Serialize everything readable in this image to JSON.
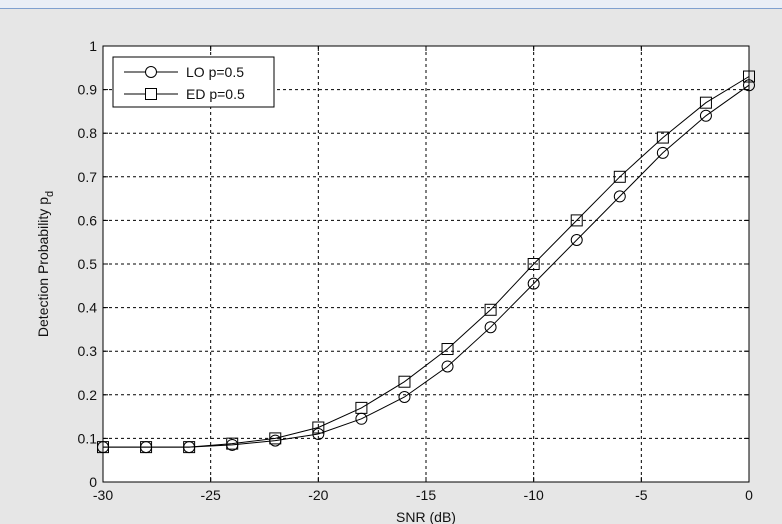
{
  "chart_data": {
    "type": "line",
    "title": "",
    "xlabel": "SNR (dB)",
    "ylabel_main": "Detection Probability p",
    "ylabel_sub": "d",
    "xlim": [
      -30,
      0
    ],
    "ylim": [
      0,
      1
    ],
    "xticks": [
      -30,
      -25,
      -20,
      -15,
      -10,
      -5,
      0
    ],
    "yticks": [
      0,
      0.1,
      0.2,
      0.3,
      0.4,
      0.5,
      0.6,
      0.7,
      0.8,
      0.9,
      1
    ],
    "ytick_labels": [
      "0",
      "0.1",
      "0.2",
      "0.3",
      "0.4",
      "0.5",
      "0.6",
      "0.7",
      "0.8",
      "0.9",
      "1"
    ],
    "xtick_labels": [
      "-30",
      "-25",
      "-20",
      "-15",
      "-10",
      "-5",
      "0"
    ],
    "grid": true,
    "legend_position": "top-left",
    "x": [
      -30,
      -28,
      -26,
      -24,
      -22,
      -20,
      -18,
      -16,
      -14,
      -12,
      -10,
      -8,
      -6,
      -4,
      -2,
      0
    ],
    "series": [
      {
        "name": "LO p=0.5",
        "marker": "circle",
        "values": [
          0.08,
          0.08,
          0.08,
          0.085,
          0.095,
          0.11,
          0.145,
          0.195,
          0.265,
          0.355,
          0.455,
          0.555,
          0.655,
          0.755,
          0.84,
          0.91
        ]
      },
      {
        "name": "ED p=0.5",
        "marker": "square",
        "values": [
          0.08,
          0.08,
          0.08,
          0.088,
          0.1,
          0.125,
          0.17,
          0.23,
          0.305,
          0.395,
          0.5,
          0.6,
          0.7,
          0.79,
          0.87,
          0.93
        ]
      }
    ],
    "colors": {
      "line": "#000000",
      "grid": "#000000",
      "plot_bg": "#ffffff",
      "figure_bg": "#e6e6e6"
    }
  }
}
